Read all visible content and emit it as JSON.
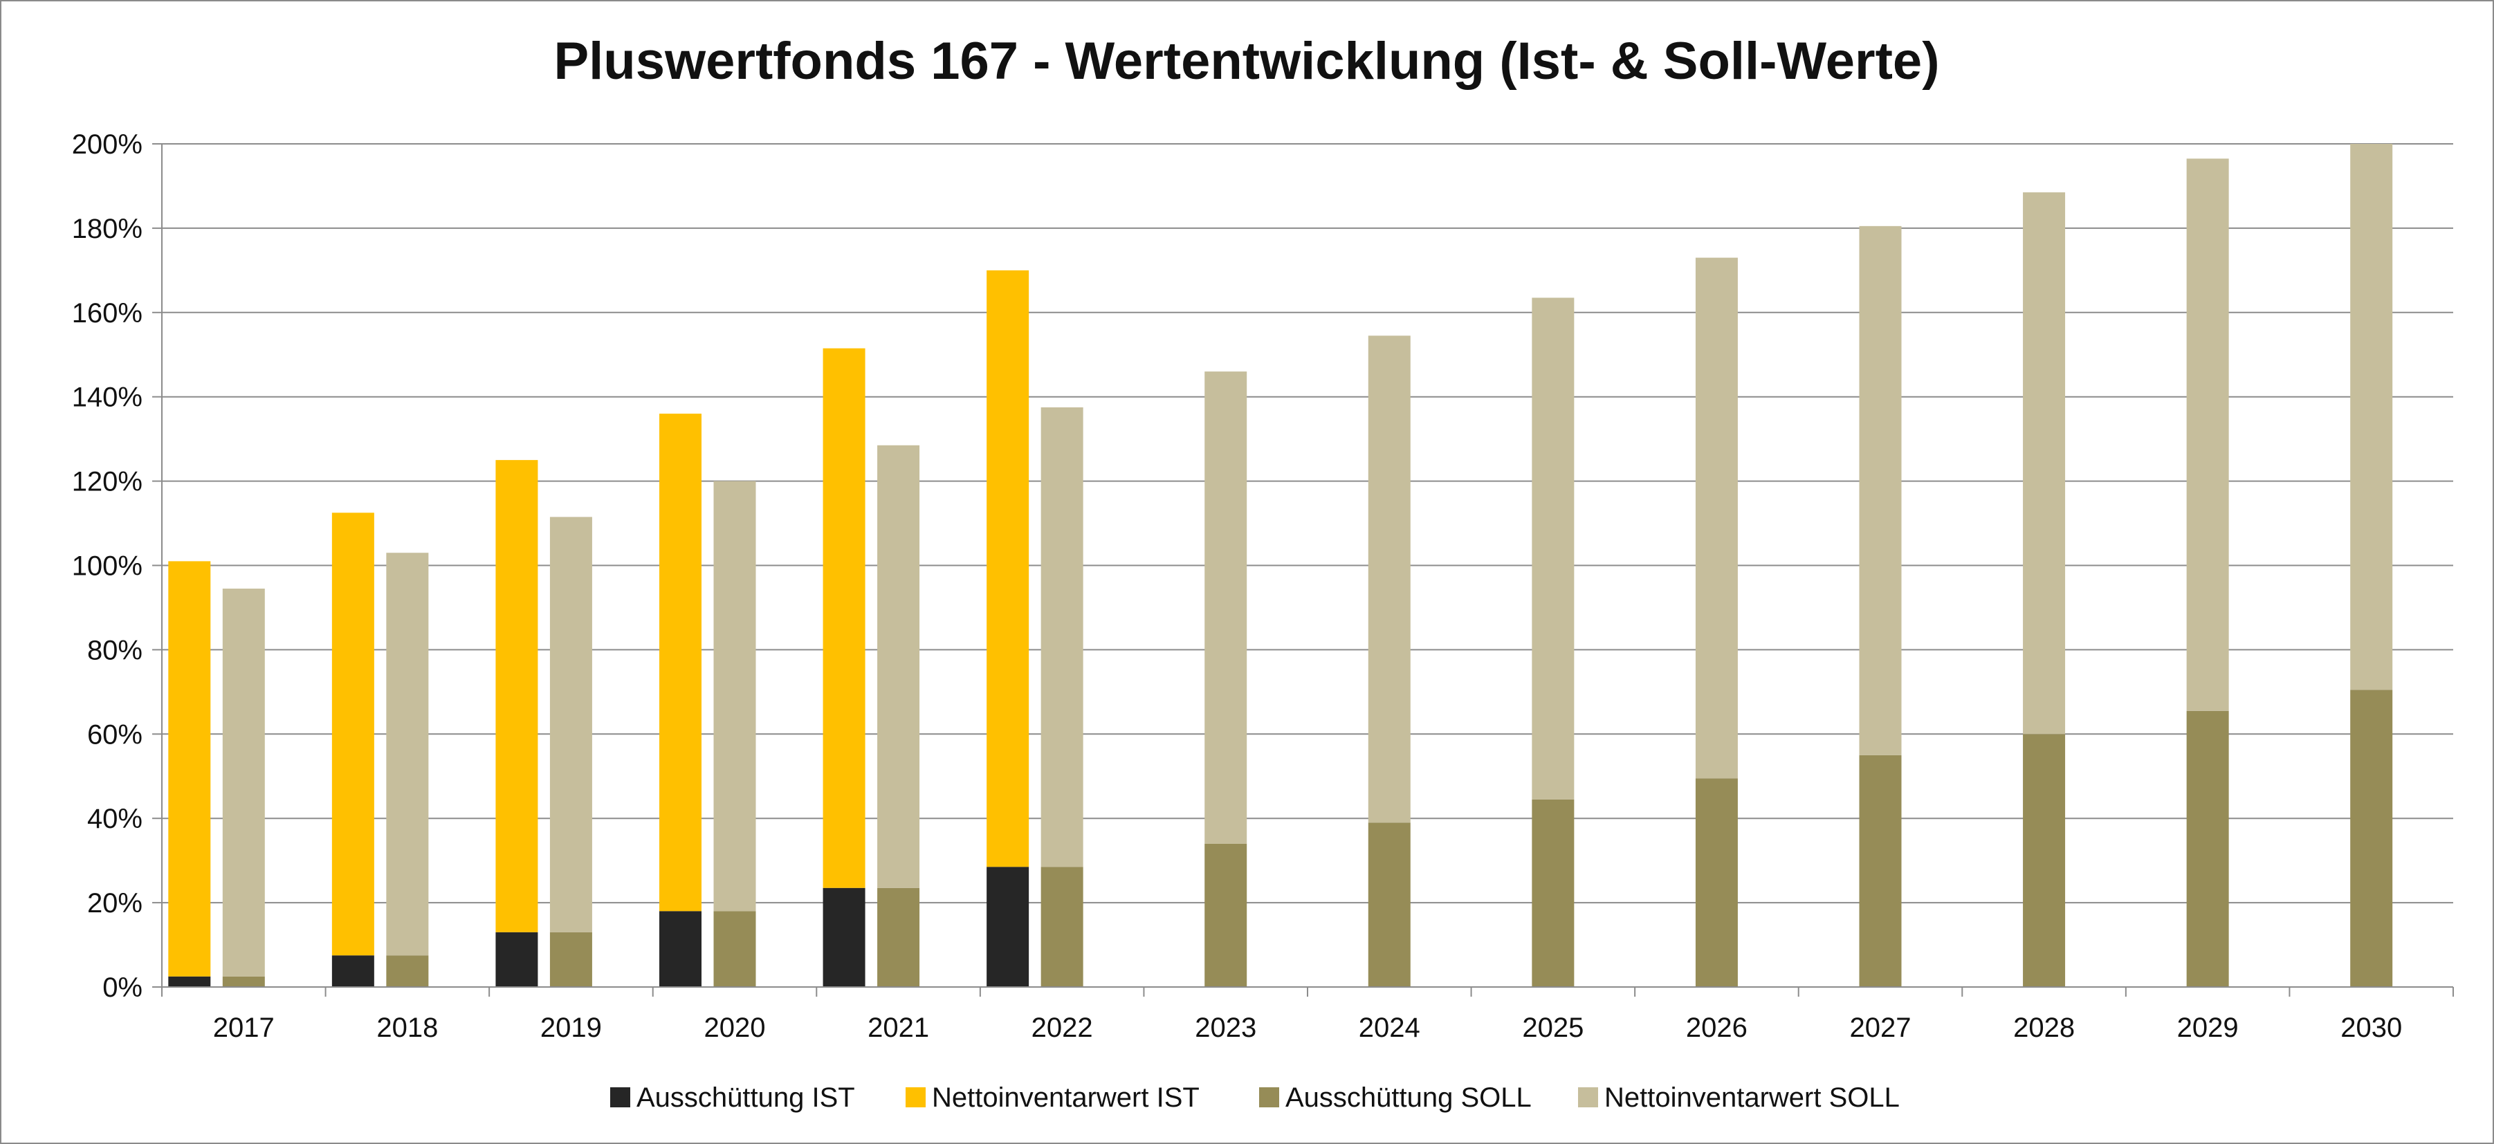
{
  "chart_data": {
    "type": "bar",
    "title": "Pluswertfonds 167 - Wertentwicklung (Ist- & Soll-Werte)",
    "xlabel": "",
    "ylabel": "",
    "ylim": [
      0,
      200
    ],
    "yticks": [
      0,
      20,
      40,
      60,
      80,
      100,
      120,
      140,
      160,
      180,
      200
    ],
    "ytick_labels": [
      "0%",
      "20%",
      "40%",
      "60%",
      "80%",
      "100%",
      "120%",
      "140%",
      "160%",
      "180%",
      "200%"
    ],
    "grid": true,
    "legend_position": "bottom",
    "categories": [
      "2017",
      "2018",
      "2019",
      "2020",
      "2021",
      "2022",
      "2023",
      "2024",
      "2025",
      "2026",
      "2027",
      "2028",
      "2029",
      "2030"
    ],
    "stacks": [
      {
        "stack": "IST",
        "series": [
          {
            "name": "Ausschüttung IST",
            "color": "#262626",
            "values": [
              2.5,
              7.5,
              13,
              18,
              23.5,
              28.5,
              null,
              null,
              null,
              null,
              null,
              null,
              null,
              null
            ]
          },
          {
            "name": "Nettoinventarwert IST",
            "color": "#ffc000",
            "values": [
              98.5,
              105,
              112,
              118,
              128,
              141.5,
              null,
              null,
              null,
              null,
              null,
              null,
              null,
              null
            ]
          }
        ]
      },
      {
        "stack": "SOLL",
        "series": [
          {
            "name": "Ausschüttung SOLL",
            "color": "#968c57",
            "values": [
              2.5,
              7.5,
              13,
              18,
              23.5,
              28.5,
              34,
              39,
              44.5,
              49.5,
              55,
              60,
              65.5,
              70.5
            ]
          },
          {
            "name": "Nettoinventarwert SOLL",
            "color": "#c6be9c",
            "values": [
              92,
              95.5,
              98.5,
              102,
              105,
              109,
              112,
              115.5,
              119,
              123.5,
              125.5,
              128.5,
              131,
              129.5
            ]
          }
        ]
      }
    ]
  }
}
